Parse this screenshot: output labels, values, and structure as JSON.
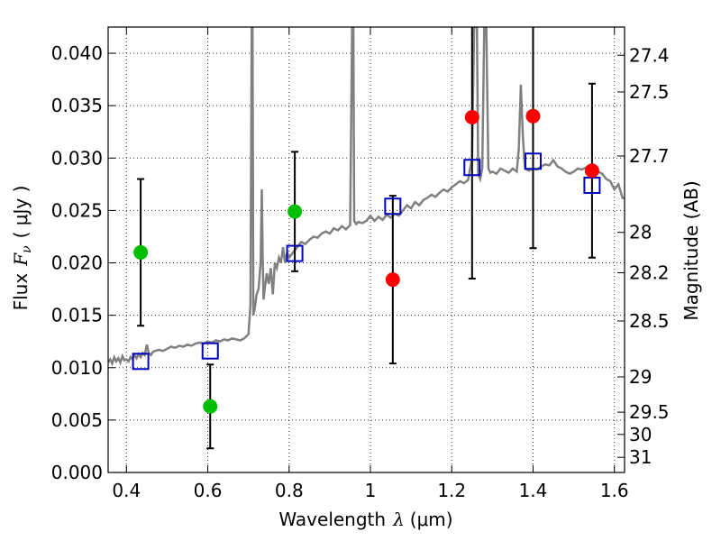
{
  "chart_data": {
    "type": "scatter",
    "xlabel": "Wavelength",
    "xlabel_symbol": "λ",
    "xlabel_unit": "(μm)",
    "ylabel": "Flux",
    "ylabel_symbol": "F",
    "ylabel_subscript": "ν",
    "ylabel_unit": "( μJy )",
    "y2label": "Magnitude (AB)",
    "xlim": [
      0.355,
      1.625
    ],
    "ylim": [
      0.0,
      0.0425
    ],
    "grid": true,
    "x_ticks": [
      0.4,
      0.6,
      0.8,
      1.0,
      1.2,
      1.4,
      1.6
    ],
    "x_tick_labels": [
      "0.4",
      "0.6",
      "0.8",
      "1",
      "1.2",
      "1.4",
      "1.6"
    ],
    "y_ticks": [
      0.0,
      0.005,
      0.01,
      0.015,
      0.02,
      0.025,
      0.03,
      0.035,
      0.04
    ],
    "y_tick_labels": [
      "0.000",
      "0.005",
      "0.010",
      "0.015",
      "0.020",
      "0.025",
      "0.030",
      "0.035",
      "0.040"
    ],
    "y2_ticks": [
      {
        "mag": 27.4,
        "label": "27.4"
      },
      {
        "mag": 27.5,
        "label": "27.5"
      },
      {
        "mag": 27.7,
        "label": "27.7"
      },
      {
        "mag": 28.0,
        "label": "28"
      },
      {
        "mag": 28.2,
        "label": "28.2"
      },
      {
        "mag": 28.5,
        "label": "28.5"
      },
      {
        "mag": 29.0,
        "label": "29"
      },
      {
        "mag": 29.5,
        "label": "29.5"
      },
      {
        "mag": 30.0,
        "label": "30"
      },
      {
        "mag": 31.0,
        "label": "31"
      }
    ],
    "series": [
      {
        "kind": "spectrum",
        "color": "#808080",
        "x": [
          0.355,
          0.36,
          0.365,
          0.37,
          0.375,
          0.38,
          0.385,
          0.39,
          0.395,
          0.4,
          0.405,
          0.41,
          0.415,
          0.42,
          0.425,
          0.43,
          0.435,
          0.44,
          0.445,
          0.45,
          0.455,
          0.46,
          0.465,
          0.47,
          0.48,
          0.49,
          0.5,
          0.51,
          0.52,
          0.53,
          0.54,
          0.55,
          0.56,
          0.57,
          0.58,
          0.59,
          0.6,
          0.61,
          0.62,
          0.63,
          0.64,
          0.65,
          0.66,
          0.67,
          0.68,
          0.69,
          0.7,
          0.705,
          0.708,
          0.71,
          0.712,
          0.715,
          0.72,
          0.725,
          0.73,
          0.733,
          0.735,
          0.737,
          0.74,
          0.745,
          0.75,
          0.755,
          0.76,
          0.765,
          0.77,
          0.775,
          0.78,
          0.785,
          0.79,
          0.795,
          0.8,
          0.81,
          0.82,
          0.83,
          0.84,
          0.85,
          0.86,
          0.87,
          0.88,
          0.89,
          0.9,
          0.91,
          0.92,
          0.93,
          0.94,
          0.95,
          0.955,
          0.957,
          0.958,
          0.96,
          0.965,
          0.97,
          0.98,
          0.99,
          1.0,
          1.01,
          1.02,
          1.03,
          1.04,
          1.05,
          1.06,
          1.07,
          1.08,
          1.09,
          1.1,
          1.11,
          1.12,
          1.13,
          1.14,
          1.15,
          1.16,
          1.17,
          1.18,
          1.19,
          1.2,
          1.21,
          1.22,
          1.23,
          1.24,
          1.25,
          1.255,
          1.258,
          1.262,
          1.265,
          1.27,
          1.275,
          1.28,
          1.285,
          1.29,
          1.295,
          1.3,
          1.31,
          1.32,
          1.33,
          1.34,
          1.35,
          1.36,
          1.365,
          1.37,
          1.375,
          1.38,
          1.39,
          1.4,
          1.41,
          1.42,
          1.43,
          1.44,
          1.45,
          1.46,
          1.47,
          1.48,
          1.49,
          1.5,
          1.51,
          1.52,
          1.53,
          1.54,
          1.55,
          1.56,
          1.57,
          1.58,
          1.59,
          1.6,
          1.61,
          1.62,
          1.625
        ],
        "y": [
          0.0105,
          0.0108,
          0.0104,
          0.011,
          0.0106,
          0.0109,
          0.0105,
          0.0111,
          0.0107,
          0.0108,
          0.0106,
          0.011,
          0.0108,
          0.0112,
          0.0109,
          0.0113,
          0.011,
          0.0114,
          0.0112,
          0.0122,
          0.0114,
          0.0112,
          0.0115,
          0.0116,
          0.0117,
          0.0116,
          0.0118,
          0.012,
          0.0119,
          0.0121,
          0.012,
          0.0122,
          0.0121,
          0.0123,
          0.0124,
          0.0123,
          0.0125,
          0.0124,
          0.0126,
          0.0125,
          0.0127,
          0.0126,
          0.0128,
          0.0127,
          0.0126,
          0.0128,
          0.0132,
          0.016,
          0.0425,
          0.0425,
          0.015,
          0.0155,
          0.017,
          0.0175,
          0.02,
          0.027,
          0.021,
          0.0165,
          0.0175,
          0.019,
          0.018,
          0.0195,
          0.017,
          0.02,
          0.0195,
          0.0205,
          0.02,
          0.0215,
          0.02,
          0.021,
          0.0205,
          0.021,
          0.0215,
          0.022,
          0.0218,
          0.0222,
          0.0225,
          0.0224,
          0.0228,
          0.023,
          0.0228,
          0.0233,
          0.0231,
          0.0235,
          0.0232,
          0.0236,
          0.0425,
          0.0425,
          0.0425,
          0.024,
          0.0237,
          0.0239,
          0.0238,
          0.024,
          0.0245,
          0.024,
          0.0244,
          0.0241,
          0.0246,
          0.0243,
          0.0247,
          0.0245,
          0.025,
          0.0255,
          0.0252,
          0.0258,
          0.0255,
          0.026,
          0.0262,
          0.0265,
          0.0263,
          0.0267,
          0.027,
          0.0268,
          0.0272,
          0.0275,
          0.0278,
          0.0276,
          0.0279,
          0.03,
          0.0425,
          0.0425,
          0.0425,
          0.0285,
          0.028,
          0.029,
          0.0425,
          0.0425,
          0.029,
          0.0286,
          0.0287,
          0.0285,
          0.029,
          0.0288,
          0.0286,
          0.029,
          0.0287,
          0.031,
          0.037,
          0.032,
          0.029,
          0.0288,
          0.029,
          0.0289,
          0.0292,
          0.0294,
          0.0293,
          0.0298,
          0.0292,
          0.029,
          0.0287,
          0.0285,
          0.0287,
          0.029,
          0.0289,
          0.0291,
          0.0288,
          0.029,
          0.0287,
          0.0285,
          0.028,
          0.0278,
          0.027,
          0.0275,
          0.0262,
          0.0262
        ]
      },
      {
        "kind": "model-photometry",
        "marker": "open-square",
        "color": "#0000bf",
        "points": [
          {
            "x": 0.435,
            "y": 0.0106
          },
          {
            "x": 0.606,
            "y": 0.0116
          },
          {
            "x": 0.814,
            "y": 0.0209
          },
          {
            "x": 1.055,
            "y": 0.0254
          },
          {
            "x": 1.25,
            "y": 0.0291
          },
          {
            "x": 1.4,
            "y": 0.0297
          },
          {
            "x": 1.545,
            "y": 0.0274
          }
        ]
      },
      {
        "kind": "observed-green",
        "marker": "filled-circle",
        "color": "#00bf00",
        "points": [
          {
            "x": 0.435,
            "y": 0.021,
            "err": 0.007
          },
          {
            "x": 0.606,
            "y": 0.0063,
            "err": 0.004
          },
          {
            "x": 0.814,
            "y": 0.0249,
            "err": 0.0057
          }
        ]
      },
      {
        "kind": "observed-red",
        "marker": "filled-circle",
        "color": "#ff0000",
        "points": [
          {
            "x": 1.055,
            "y": 0.0184,
            "err": 0.008
          },
          {
            "x": 1.25,
            "y": 0.0339,
            "err": 0.0154
          },
          {
            "x": 1.4,
            "y": 0.034,
            "err": 0.0126
          },
          {
            "x": 1.545,
            "y": 0.0288,
            "err": 0.0083
          }
        ]
      }
    ]
  }
}
